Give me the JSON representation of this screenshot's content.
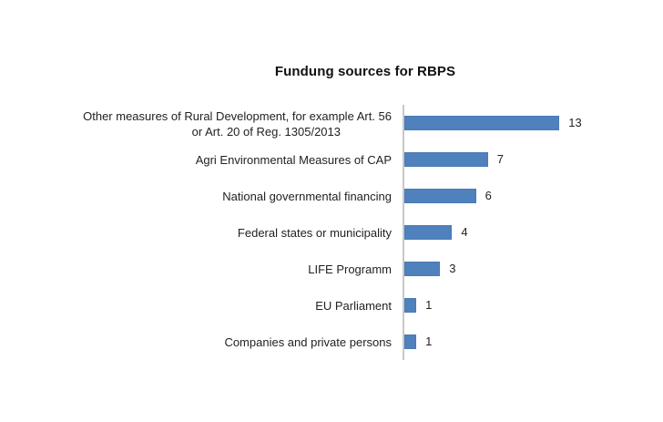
{
  "chart_data": {
    "type": "bar",
    "orientation": "horizontal",
    "title": "Fundung sources for RBPS",
    "xlabel": "",
    "ylabel": "",
    "categories": [
      "Other measures of Rural Development, for example Art. 56 or Art. 20 of Reg. 1305/2013",
      "Agri Environmental Measures of CAP",
      "National governmental financing",
      "Federal states or municipality",
      "LIFE Programm",
      "EU Parliament",
      "Companies and private persons"
    ],
    "values": [
      13,
      7,
      6,
      4,
      3,
      1,
      1
    ],
    "data_labels": [
      "13",
      "7",
      "6",
      "4",
      "3",
      "1",
      "1"
    ],
    "xlim": [
      0,
      14
    ],
    "grid": false,
    "legend": null,
    "bar_color": "#4f81bd"
  },
  "rows": [
    {
      "label_line1": "Other measures of Rural Development, for example Art. 56",
      "label_line2": "or Art. 20 of Reg. 1305/2013",
      "value": "13"
    },
    {
      "label_line1": "Agri Environmental Measures of CAP",
      "value": "7"
    },
    {
      "label_line1": "National governmental financing",
      "value": "6"
    },
    {
      "label_line1": "Federal states or municipality",
      "value": "4"
    },
    {
      "label_line1": "LIFE Programm",
      "value": "3"
    },
    {
      "label_line1": "EU Parliament",
      "value": "1"
    },
    {
      "label_line1": "Companies and private persons",
      "value": "1"
    }
  ]
}
